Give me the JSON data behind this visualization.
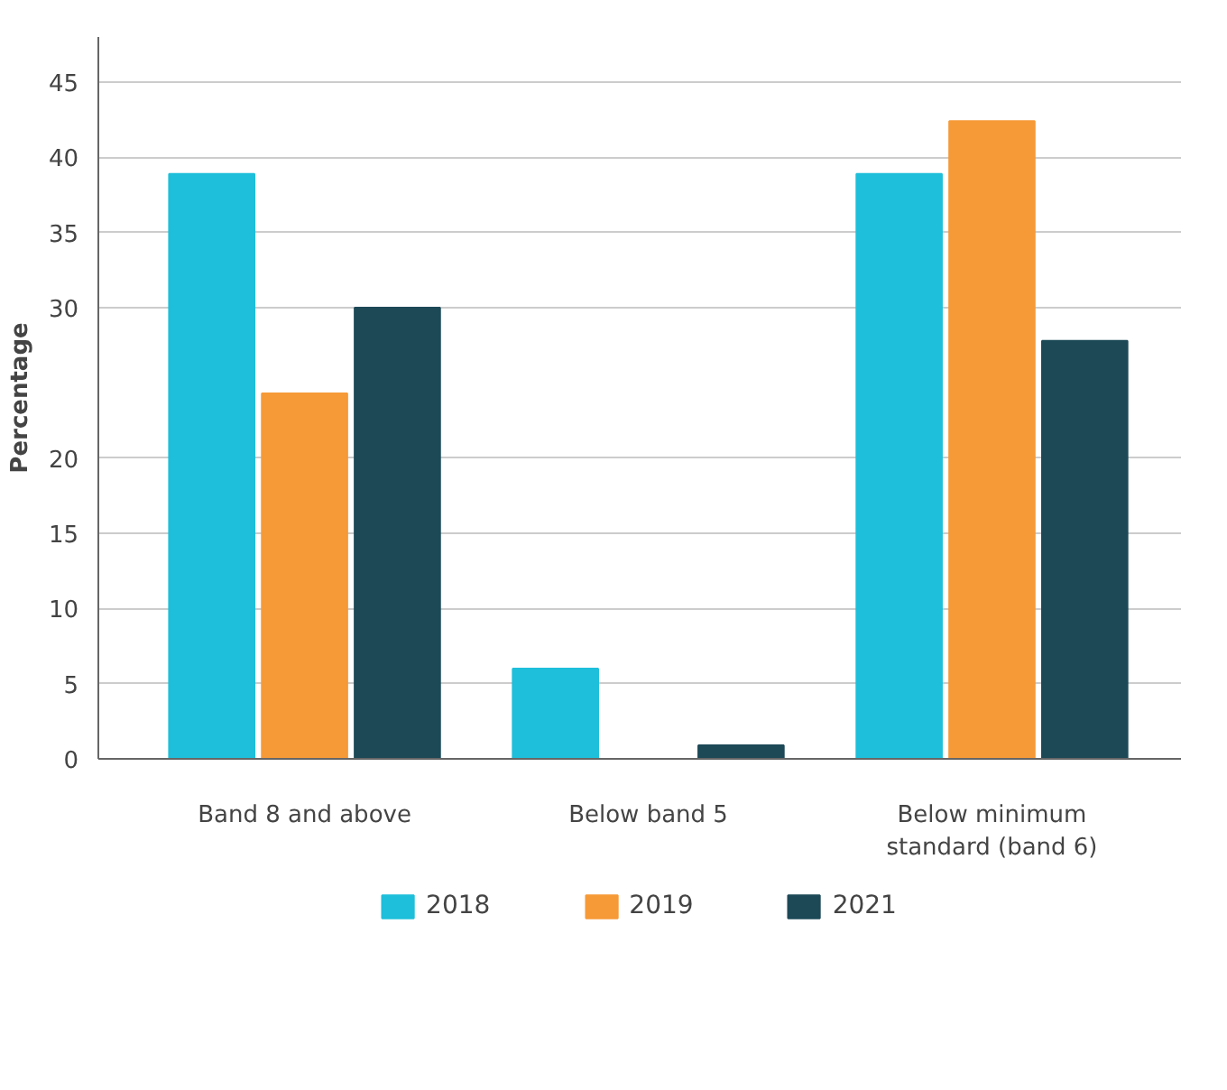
{
  "chart_data": {
    "type": "bar",
    "ylabel": "Percentage",
    "categories": [
      "Band 8 and above",
      "Below band 5",
      "Below minimum\nstandard (band 6)"
    ],
    "series": [
      {
        "name": "2018",
        "color": "#1ebfda",
        "values": [
          38.9,
          6.0,
          38.9
        ]
      },
      {
        "name": "2019",
        "color": "#f69a37",
        "values": [
          24.3,
          null,
          42.4
        ]
      },
      {
        "name": "2021",
        "color": "#1d4957",
        "values": [
          30.0,
          0.9,
          27.8
        ]
      }
    ],
    "ylim": [
      0,
      48
    ],
    "yticks": [
      0,
      5,
      10,
      15,
      20,
      30,
      35,
      40,
      45
    ],
    "grid": "y",
    "legend": "bottom"
  }
}
